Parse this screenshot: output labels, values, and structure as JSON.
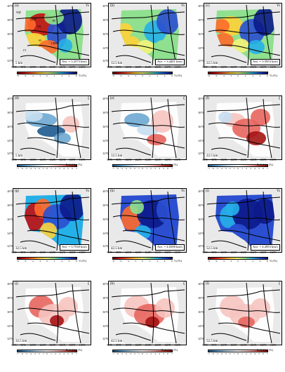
{
  "axis": {
    "lat_labels": [
      "40°N",
      "38°N",
      "36°N",
      "34°N",
      "32°N"
    ],
    "lon_labels": [
      "96°E",
      "98°E",
      "100°E",
      "102°E",
      "104°E",
      "106°E",
      "108°E",
      "110°E"
    ]
  },
  "colorbars": {
    "vs": {
      "label": "Vs (%)",
      "ticks": [
        "−8",
        "−6",
        "−4",
        "−2",
        "0",
        "2",
        "4",
        "6",
        "8"
      ],
      "colors": [
        "#7a0000",
        "#d21f1f",
        "#ff6a2b",
        "#ffd23a",
        "#f4f47a",
        "#8fe08f",
        "#26b0e8",
        "#2b4fd0",
        "#0c1a8a"
      ]
    },
    "radial": {
      "label": "Radial Ani (%)",
      "ticks": [
        "−7",
        "−6",
        "−5",
        "−4",
        "−3",
        "−2",
        "−1",
        "0",
        "1",
        "2",
        "3",
        "4",
        "5",
        "6",
        "7"
      ],
      "colors": [
        "#1e5a8f",
        "#6da8d1",
        "#c6def0",
        "#ffffff",
        "#f6c4c0",
        "#e7655e",
        "#a51414"
      ]
    }
  },
  "regions": {
    "nqf": "NQF",
    "qlsf": "QLSF",
    "ib": "IB",
    "oq": "OQ",
    "wqf": "WQF",
    "sg": "SG",
    "lmsf": "LMSF",
    "ly": "LY"
  },
  "panels": [
    {
      "id": "a",
      "label": "(a)",
      "tag": "Vs",
      "depth": "5 km",
      "avg": "Ave. = 3.2573 km/s",
      "kind": "vs",
      "pattern": 0
    },
    {
      "id": "b",
      "label": "(b)",
      "tag": "Vs",
      "depth": "12.5 km",
      "avg": "Ave. = 3.4401 km/s",
      "kind": "vs",
      "pattern": 1
    },
    {
      "id": "c",
      "label": "(c)",
      "tag": "Vs",
      "depth": "22.5 km",
      "avg": "Ave. = 3.5953 km/s",
      "kind": "vs",
      "pattern": 2
    },
    {
      "id": "d",
      "label": "(d)",
      "tag": "ξ",
      "depth": "5 km",
      "avg": "",
      "kind": "radial",
      "pattern": 3
    },
    {
      "id": "e",
      "label": "(e)",
      "tag": "ξ",
      "depth": "12.5 km",
      "avg": "",
      "kind": "radial",
      "pattern": 4
    },
    {
      "id": "f",
      "label": "(f)",
      "tag": "ξ",
      "depth": "22.5 km",
      "avg": "",
      "kind": "radial",
      "pattern": 5
    },
    {
      "id": "g",
      "label": "(g)",
      "tag": "Vs",
      "depth": "32.5 km",
      "avg": "Ave. = 3.7530 km/s",
      "kind": "vs",
      "pattern": 6
    },
    {
      "id": "h",
      "label": "(h)",
      "tag": "Vs",
      "depth": "42.5 km",
      "avg": "Ave. = 4.0398 km/s",
      "kind": "vs",
      "pattern": 7
    },
    {
      "id": "i",
      "label": "(i)",
      "tag": "Vs",
      "depth": "52.5 km",
      "avg": "Ave. = 4.2953 km/s",
      "kind": "vs",
      "pattern": 8
    },
    {
      "id": "j",
      "label": "(j)",
      "tag": "ξ",
      "depth": "32.5 km",
      "avg": "",
      "kind": "radial",
      "pattern": 9
    },
    {
      "id": "k",
      "label": "(k)",
      "tag": "ξ",
      "depth": "42.5 km",
      "avg": "",
      "kind": "radial",
      "pattern": 10
    },
    {
      "id": "l",
      "label": "(l)",
      "tag": "ξ",
      "depth": "52.5 km",
      "avg": "",
      "kind": "radial",
      "pattern": 11
    }
  ]
}
